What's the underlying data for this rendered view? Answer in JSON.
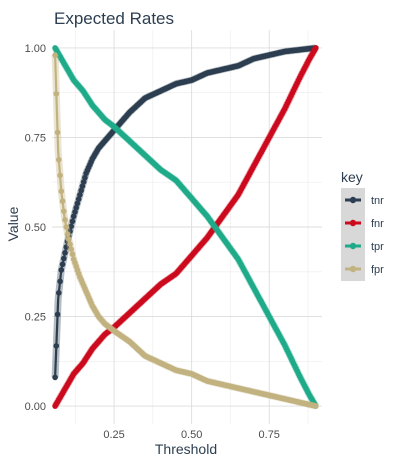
{
  "chart_data": {
    "type": "line",
    "title": "Expected Rates",
    "xlabel": "Threshold",
    "ylabel": "Value",
    "xlim": [
      0.05,
      0.92
    ],
    "ylim": [
      -0.05,
      1.05
    ],
    "xticks": [
      0.25,
      0.5,
      0.75
    ],
    "xtick_labels": [
      "0.25",
      "0.50",
      "0.75"
    ],
    "yticks": [
      0.0,
      0.25,
      0.5,
      0.75,
      1.0
    ],
    "ytick_labels": [
      "0.00",
      "0.25",
      "0.50",
      "0.75",
      "1.00"
    ],
    "grid": true,
    "legend": {
      "title": "key",
      "position": "right"
    },
    "series": [
      {
        "name": "tnr",
        "color": "#2c3e50",
        "x": [
          0.06,
          0.07,
          0.08,
          0.09,
          0.1,
          0.12,
          0.14,
          0.16,
          0.18,
          0.2,
          0.22,
          0.25,
          0.3,
          0.35,
          0.4,
          0.45,
          0.5,
          0.55,
          0.6,
          0.65,
          0.7,
          0.75,
          0.8,
          0.85,
          0.9
        ],
        "values": [
          0.08,
          0.3,
          0.38,
          0.42,
          0.46,
          0.53,
          0.59,
          0.65,
          0.69,
          0.72,
          0.74,
          0.77,
          0.82,
          0.86,
          0.88,
          0.9,
          0.91,
          0.93,
          0.94,
          0.95,
          0.97,
          0.98,
          0.99,
          0.995,
          1.0
        ]
      },
      {
        "name": "fnr",
        "color": "#cc0a1e",
        "x": [
          0.06,
          0.08,
          0.1,
          0.12,
          0.15,
          0.18,
          0.2,
          0.22,
          0.25,
          0.3,
          0.35,
          0.4,
          0.45,
          0.5,
          0.55,
          0.6,
          0.65,
          0.7,
          0.75,
          0.8,
          0.85,
          0.88,
          0.9
        ],
        "values": [
          0.0,
          0.03,
          0.06,
          0.09,
          0.12,
          0.16,
          0.18,
          0.2,
          0.22,
          0.26,
          0.3,
          0.34,
          0.37,
          0.42,
          0.47,
          0.53,
          0.59,
          0.67,
          0.75,
          0.83,
          0.92,
          0.97,
          1.0
        ]
      },
      {
        "name": "tpr",
        "color": "#1fab89",
        "x": [
          0.06,
          0.08,
          0.1,
          0.12,
          0.15,
          0.18,
          0.2,
          0.22,
          0.25,
          0.3,
          0.35,
          0.4,
          0.45,
          0.5,
          0.55,
          0.6,
          0.65,
          0.7,
          0.75,
          0.8,
          0.85,
          0.88,
          0.9
        ],
        "values": [
          1.0,
          0.97,
          0.94,
          0.91,
          0.88,
          0.84,
          0.82,
          0.8,
          0.78,
          0.74,
          0.7,
          0.66,
          0.63,
          0.58,
          0.53,
          0.47,
          0.41,
          0.33,
          0.25,
          0.17,
          0.08,
          0.03,
          0.0
        ]
      },
      {
        "name": "fpr",
        "color": "#c2b280",
        "x": [
          0.06,
          0.07,
          0.08,
          0.09,
          0.1,
          0.12,
          0.14,
          0.16,
          0.18,
          0.2,
          0.22,
          0.25,
          0.3,
          0.35,
          0.4,
          0.45,
          0.5,
          0.55,
          0.6,
          0.65,
          0.7,
          0.75,
          0.8,
          0.85,
          0.9
        ],
        "values": [
          0.98,
          0.71,
          0.6,
          0.53,
          0.48,
          0.41,
          0.36,
          0.32,
          0.28,
          0.25,
          0.23,
          0.21,
          0.18,
          0.14,
          0.12,
          0.1,
          0.09,
          0.07,
          0.06,
          0.05,
          0.04,
          0.03,
          0.02,
          0.01,
          0.0
        ]
      }
    ]
  }
}
